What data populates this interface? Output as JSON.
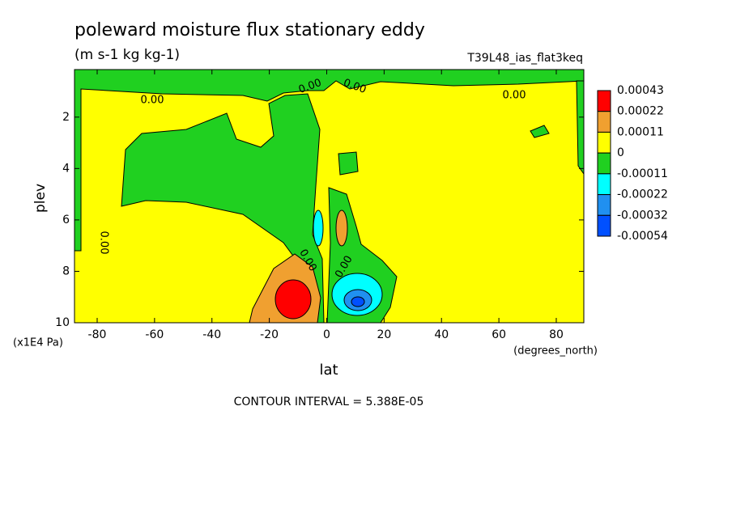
{
  "chart_data": {
    "type": "contour",
    "title": "poleward moisture flux stationary eddy",
    "subtitle": "(m s-1 kg kg-1)",
    "dataset": "T39L48_ias_flat3keq",
    "x_label": "lat",
    "x_units": "(degrees_north)",
    "y_label": "plev",
    "y_units": "(x1E4 Pa)",
    "footer": "CONTOUR INTERVAL = 5.388E-05",
    "xlim": [
      -87.9,
      89.6
    ],
    "xticks": [
      -80,
      -60,
      -40,
      -20,
      0,
      20,
      40,
      60,
      80
    ],
    "ylim": [
      10,
      0.15
    ],
    "yticks": [
      2,
      4,
      6,
      8,
      10
    ],
    "levels": [
      0.00043,
      0.00022,
      0.00011,
      0,
      -0.00011,
      -0.00022,
      -0.00032,
      -0.00054
    ],
    "colors": [
      "#ff0000",
      "#f0a030",
      "#ffff00",
      "#20d020",
      "#00ffff",
      "#2090f0",
      "#0050ff"
    ],
    "contour_labels": [
      "0.00",
      "0.00",
      "0.00",
      "0.00",
      "0.00",
      "0.00",
      "0.00"
    ]
  }
}
